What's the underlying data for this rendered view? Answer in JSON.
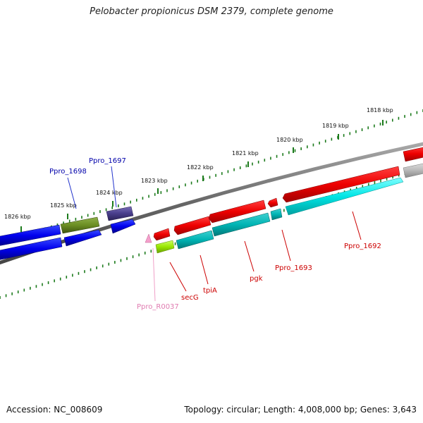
{
  "title": "Pelobacter propionicus DSM 2379, complete genome",
  "footer": {
    "accession": "Accession: NC_008609",
    "summary": "Topology: circular; Length: 4,008,000 bp; Genes: 3,643"
  },
  "scale_ticks": [
    "1818 kbp",
    "1819 kbp",
    "1820 kbp",
    "1821 kbp",
    "1822 kbp",
    "1823 kbp",
    "1824 kbp",
    "1825 kbp",
    "1826 kbp"
  ],
  "gene_labels": [
    {
      "name": "Ppro_1698",
      "color": "#0000aa"
    },
    {
      "name": "Ppro_1697",
      "color": "#0000aa"
    },
    {
      "name": "Ppro_1692",
      "color": "#cc0000"
    },
    {
      "name": "Ppro_1693",
      "color": "#cc0000"
    },
    {
      "name": "pgk",
      "color": "#cc0000"
    },
    {
      "name": "tpiA",
      "color": "#cc0000"
    },
    {
      "name": "secG",
      "color": "#cc0000"
    },
    {
      "name": "Ppro_R0037",
      "color": "#e07bb0"
    }
  ]
}
